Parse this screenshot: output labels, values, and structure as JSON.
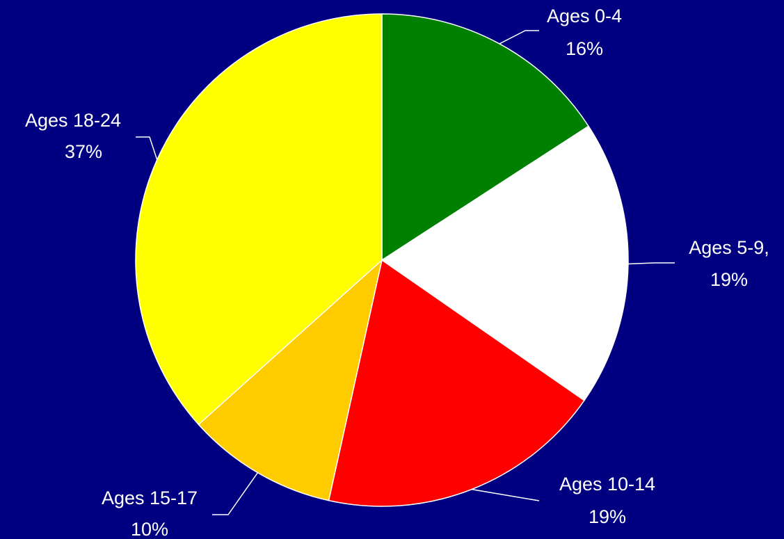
{
  "chart_data": {
    "type": "pie",
    "categories": [
      "Ages 0-4",
      "Ages 5-9,",
      "Ages 10-14",
      "Ages 15-17",
      "Ages 18-24"
    ],
    "values": [
      16,
      19,
      19,
      10,
      37
    ],
    "value_labels": [
      "16%",
      "19%",
      "19%",
      "10%",
      "37%"
    ],
    "colors": [
      "#008000",
      "#ffffff",
      "#ff0000",
      "#ffcc00",
      "#ffff00"
    ]
  }
}
